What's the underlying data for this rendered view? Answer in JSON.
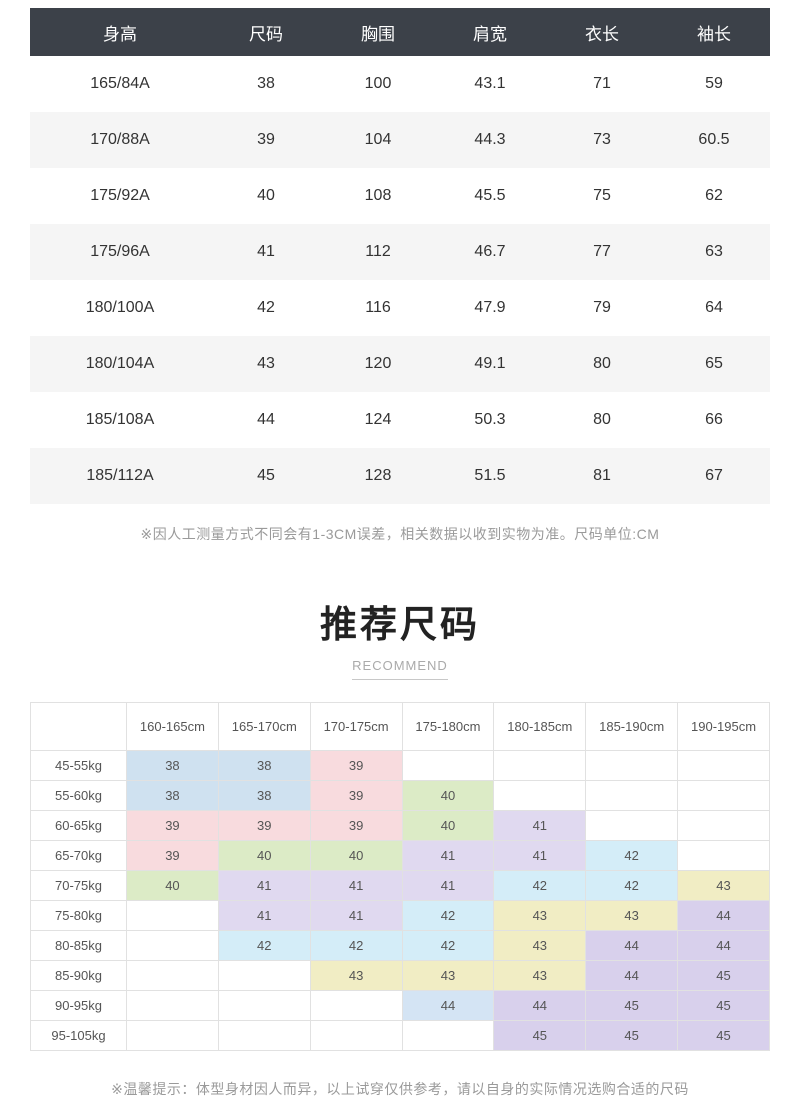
{
  "size_table": {
    "header": [
      "身高",
      "尺码",
      "胸围",
      "肩宽",
      "衣长",
      "袖长"
    ],
    "rows": [
      [
        "165/84A",
        "38",
        "100",
        "43.1",
        "71",
        "59"
      ],
      [
        "170/88A",
        "39",
        "104",
        "44.3",
        "73",
        "60.5"
      ],
      [
        "175/92A",
        "40",
        "108",
        "45.5",
        "75",
        "62"
      ],
      [
        "175/96A",
        "41",
        "112",
        "46.7",
        "77",
        "63"
      ],
      [
        "180/100A",
        "42",
        "116",
        "47.9",
        "79",
        "64"
      ],
      [
        "180/104A",
        "43",
        "120",
        "49.1",
        "80",
        "65"
      ],
      [
        "185/108A",
        "44",
        "124",
        "50.3",
        "80",
        "66"
      ],
      [
        "185/112A",
        "45",
        "128",
        "51.5",
        "81",
        "67"
      ]
    ],
    "note": "※因人工测量方式不同会有1-3CM误差，相关数据以收到实物为准。尺码单位:CM",
    "header_bg": "#3c4149",
    "header_color": "#ffffff",
    "alt_row_bg": "#f5f5f5"
  },
  "recommend": {
    "title": "推荐尺码",
    "subtitle": "RECOMMEND",
    "col_headers": [
      "160-165cm",
      "165-170cm",
      "170-175cm",
      "175-180cm",
      "180-185cm",
      "185-190cm",
      "190-195cm"
    ],
    "row_headers": [
      "45-55kg",
      "55-60kg",
      "60-65kg",
      "65-70kg",
      "70-75kg",
      "75-80kg",
      "80-85kg",
      "85-90kg",
      "90-95kg",
      "95-105kg"
    ],
    "colors": {
      "blue": "#cfe1f0",
      "pink": "#f8dbde",
      "green": "#dcebc6",
      "lavender": "#e0d9f0",
      "cyan": "#d4edf8",
      "yellow": "#f1edc4",
      "purple": "#d8d0ec",
      "periwinkle": "#d4e4f4"
    },
    "cells": [
      [
        {
          "v": "38",
          "c": "blue"
        },
        {
          "v": "38",
          "c": "blue"
        },
        {
          "v": "39",
          "c": "pink"
        },
        null,
        null,
        null,
        null
      ],
      [
        {
          "v": "38",
          "c": "blue"
        },
        {
          "v": "38",
          "c": "blue"
        },
        {
          "v": "39",
          "c": "pink"
        },
        {
          "v": "40",
          "c": "green"
        },
        null,
        null,
        null
      ],
      [
        {
          "v": "39",
          "c": "pink"
        },
        {
          "v": "39",
          "c": "pink"
        },
        {
          "v": "39",
          "c": "pink"
        },
        {
          "v": "40",
          "c": "green"
        },
        {
          "v": "41",
          "c": "lavender"
        },
        null,
        null
      ],
      [
        {
          "v": "39",
          "c": "pink"
        },
        {
          "v": "40",
          "c": "green"
        },
        {
          "v": "40",
          "c": "green"
        },
        {
          "v": "41",
          "c": "lavender"
        },
        {
          "v": "41",
          "c": "lavender"
        },
        {
          "v": "42",
          "c": "cyan"
        },
        null
      ],
      [
        {
          "v": "40",
          "c": "green"
        },
        {
          "v": "41",
          "c": "lavender"
        },
        {
          "v": "41",
          "c": "lavender"
        },
        {
          "v": "41",
          "c": "lavender"
        },
        {
          "v": "42",
          "c": "cyan"
        },
        {
          "v": "42",
          "c": "cyan"
        },
        {
          "v": "43",
          "c": "yellow"
        }
      ],
      [
        null,
        {
          "v": "41",
          "c": "lavender"
        },
        {
          "v": "41",
          "c": "lavender"
        },
        {
          "v": "42",
          "c": "cyan"
        },
        {
          "v": "43",
          "c": "yellow"
        },
        {
          "v": "43",
          "c": "yellow"
        },
        {
          "v": "44",
          "c": "purple"
        }
      ],
      [
        null,
        {
          "v": "42",
          "c": "cyan"
        },
        {
          "v": "42",
          "c": "cyan"
        },
        {
          "v": "42",
          "c": "cyan"
        },
        {
          "v": "43",
          "c": "yellow"
        },
        {
          "v": "44",
          "c": "purple"
        },
        {
          "v": "44",
          "c": "purple"
        }
      ],
      [
        null,
        null,
        {
          "v": "43",
          "c": "yellow"
        },
        {
          "v": "43",
          "c": "yellow"
        },
        {
          "v": "43",
          "c": "yellow"
        },
        {
          "v": "44",
          "c": "purple"
        },
        {
          "v": "45",
          "c": "purple"
        }
      ],
      [
        null,
        null,
        null,
        {
          "v": "44",
          "c": "periwinkle"
        },
        {
          "v": "44",
          "c": "purple"
        },
        {
          "v": "45",
          "c": "purple"
        },
        {
          "v": "45",
          "c": "purple"
        }
      ],
      [
        null,
        null,
        null,
        null,
        {
          "v": "45",
          "c": "purple"
        },
        {
          "v": "45",
          "c": "purple"
        },
        {
          "v": "45",
          "c": "purple"
        }
      ]
    ],
    "note": "※温馨提示：体型身材因人而异，以上试穿仅供参考，请以自身的实际情况选购合适的尺码"
  },
  "chart_data": [
    {
      "type": "table",
      "title": "尺码表 (size chart, units CM)",
      "columns": [
        "身高",
        "尺码",
        "胸围",
        "肩宽",
        "衣长",
        "袖长"
      ],
      "rows": [
        [
          "165/84A",
          38,
          100,
          43.1,
          71,
          59
        ],
        [
          "170/88A",
          39,
          104,
          44.3,
          73,
          60.5
        ],
        [
          "175/92A",
          40,
          108,
          45.5,
          75,
          62
        ],
        [
          "175/96A",
          41,
          112,
          46.7,
          77,
          63
        ],
        [
          "180/100A",
          42,
          116,
          47.9,
          79,
          64
        ],
        [
          "180/104A",
          43,
          120,
          49.1,
          80,
          65
        ],
        [
          "185/108A",
          44,
          124,
          50.3,
          80,
          66
        ],
        [
          "185/112A",
          45,
          128,
          51.5,
          81,
          67
        ]
      ]
    },
    {
      "type": "table",
      "title": "推荐尺码 RECOMMEND (height x weight -> size)",
      "columns": [
        "",
        "160-165cm",
        "165-170cm",
        "170-175cm",
        "175-180cm",
        "180-185cm",
        "185-190cm",
        "190-195cm"
      ],
      "rows": [
        [
          "45-55kg",
          "38",
          "38",
          "39",
          "",
          "",
          "",
          ""
        ],
        [
          "55-60kg",
          "38",
          "38",
          "39",
          "40",
          "",
          "",
          ""
        ],
        [
          "60-65kg",
          "39",
          "39",
          "39",
          "40",
          "41",
          "",
          ""
        ],
        [
          "65-70kg",
          "39",
          "40",
          "40",
          "41",
          "41",
          "42",
          ""
        ],
        [
          "70-75kg",
          "40",
          "41",
          "41",
          "41",
          "42",
          "42",
          "43"
        ],
        [
          "75-80kg",
          "",
          "41",
          "41",
          "42",
          "43",
          "43",
          "44"
        ],
        [
          "80-85kg",
          "",
          "42",
          "42",
          "42",
          "43",
          "44",
          "44"
        ],
        [
          "85-90kg",
          "",
          "",
          "43",
          "43",
          "43",
          "44",
          "45"
        ],
        [
          "90-95kg",
          "",
          "",
          "",
          "44",
          "44",
          "45",
          "45"
        ],
        [
          "95-105kg",
          "",
          "",
          "",
          "",
          "45",
          "45",
          "45"
        ]
      ]
    }
  ]
}
